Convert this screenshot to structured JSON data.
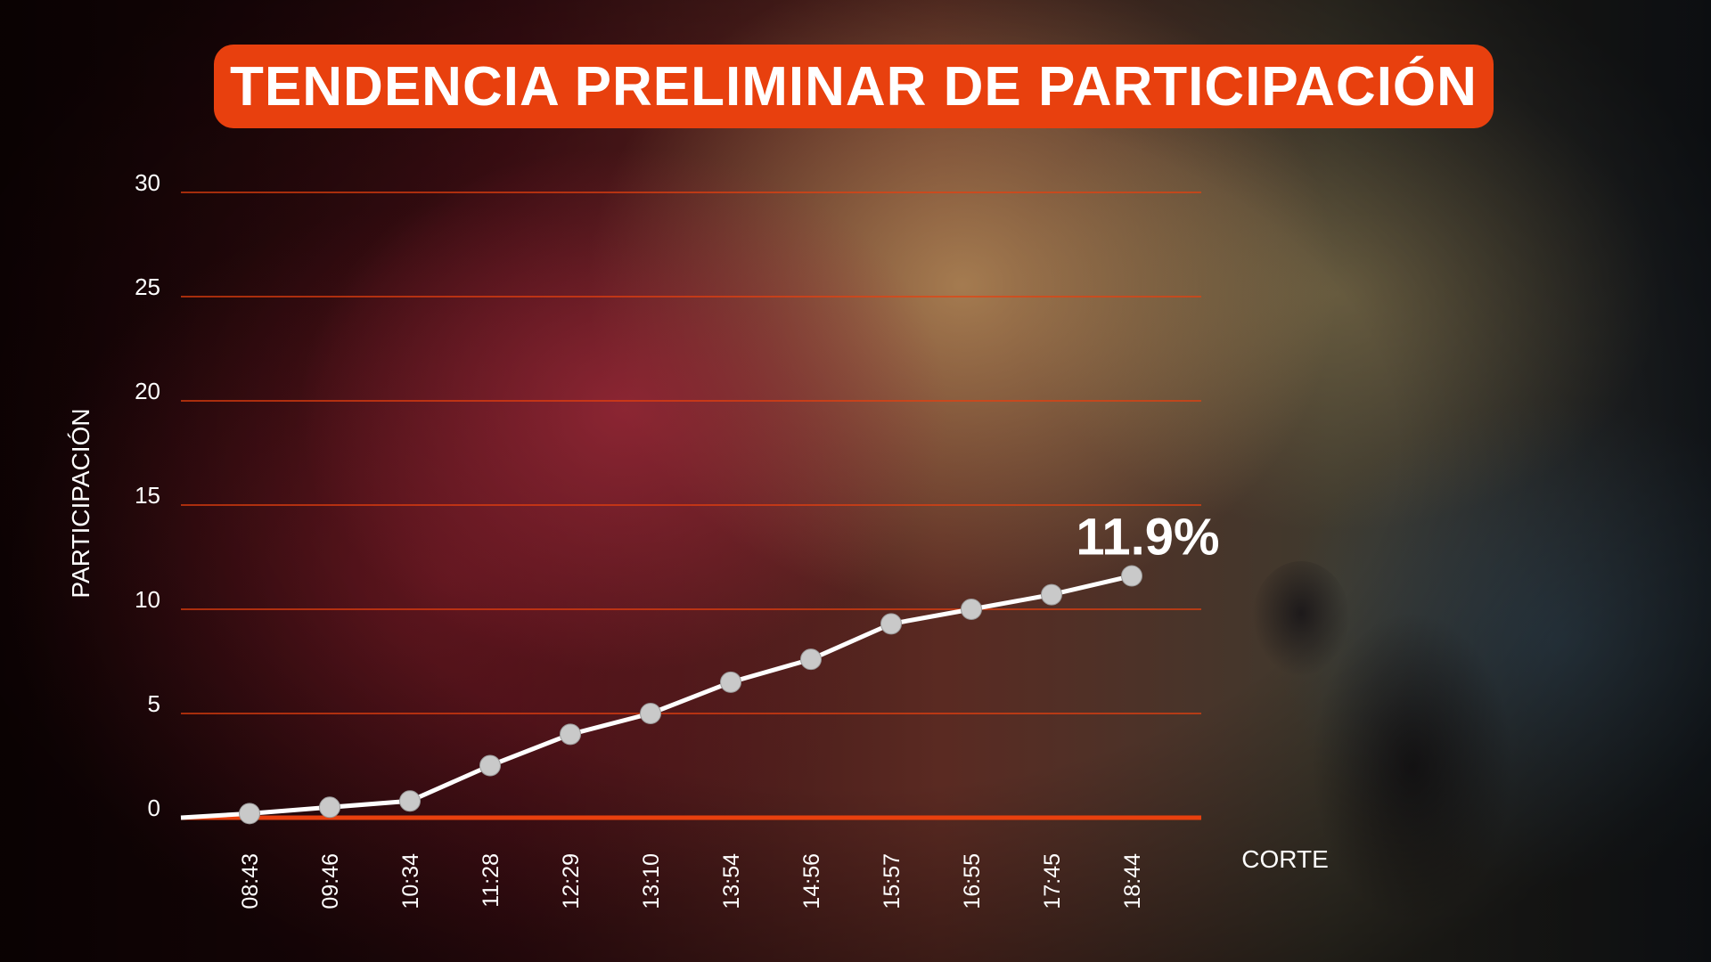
{
  "title": "TENDENCIA PRELIMINAR DE PARTICIPACIÓN",
  "chart_data": {
    "type": "line",
    "title": "TENDENCIA PRELIMINAR DE PARTICIPACIÓN",
    "xlabel": "CORTE",
    "ylabel": "PARTICIPACIÓN",
    "ylim": [
      0,
      30
    ],
    "yticks": [
      "0",
      "5",
      "10",
      "15",
      "20",
      "25",
      "30"
    ],
    "grid": true,
    "categories": [
      "08:43",
      "09:46",
      "10:34",
      "11:28",
      "12:29",
      "13:10",
      "13:54",
      "14:56",
      "15:57",
      "16:55",
      "17:45",
      "18:44"
    ],
    "values": [
      0.2,
      0.5,
      0.8,
      2.5,
      4.0,
      5.0,
      6.5,
      7.6,
      9.3,
      10.0,
      10.7,
      11.6
    ],
    "start_value": 0,
    "callout": "11.9%",
    "colors": {
      "line": "#ffffff",
      "marker": "#c9c9c9",
      "grid": "#e8400e",
      "accent": "#e8400e",
      "text": "#ffffff"
    }
  }
}
